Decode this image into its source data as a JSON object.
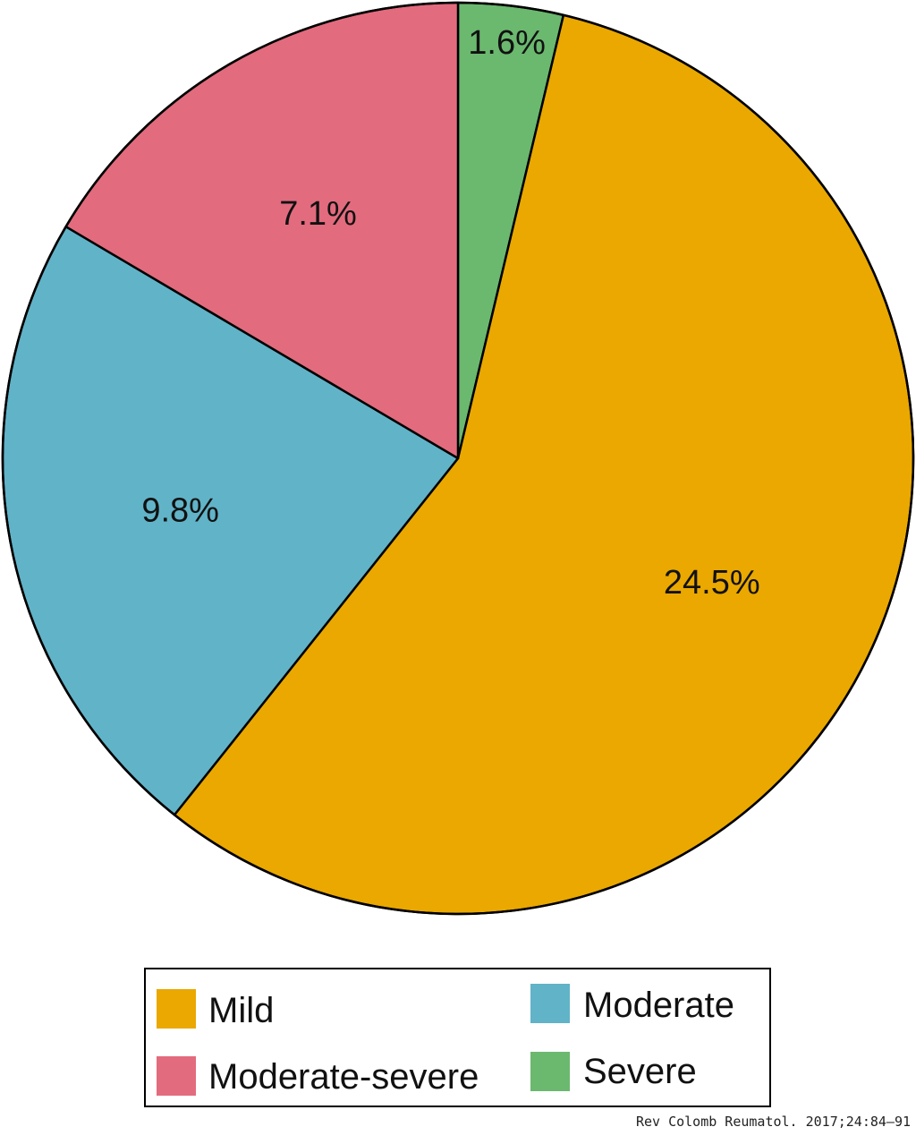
{
  "chart_data": {
    "type": "pie",
    "slices": [
      {
        "name": "Mild",
        "value": 24.5,
        "label": "24.5%",
        "color": "#eaa800"
      },
      {
        "name": "Moderate",
        "value": 9.8,
        "label": "9.8%",
        "color": "#61b3c8"
      },
      {
        "name": "Moderate-severe",
        "value": 7.1,
        "label": "7.1%",
        "color": "#e36b7e"
      },
      {
        "name": "Severe",
        "value": 1.6,
        "label": "1.6%",
        "color": "#6bb86f"
      }
    ],
    "legend": {
      "placement": "bottom",
      "entries": [
        {
          "name": "Mild",
          "color": "#eaa800"
        },
        {
          "name": "Moderate",
          "color": "#61b3c8"
        },
        {
          "name": "Moderate-severe",
          "color": "#e36b7e"
        },
        {
          "name": "Severe",
          "color": "#6bb86f"
        }
      ]
    },
    "start": "top",
    "direction": "clockwise"
  },
  "source": "Rev Colomb Reumatol. 2017;24:84–91"
}
